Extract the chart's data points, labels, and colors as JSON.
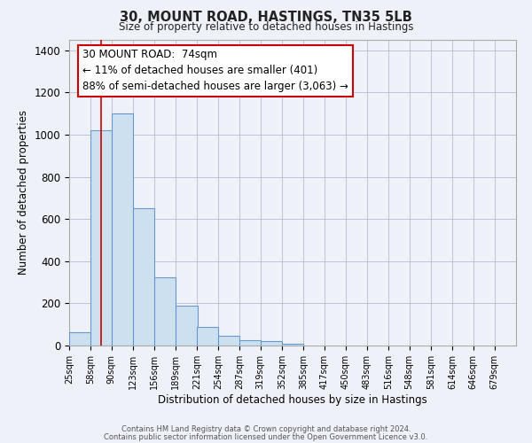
{
  "title": "30, MOUNT ROAD, HASTINGS, TN35 5LB",
  "subtitle": "Size of property relative to detached houses in Hastings",
  "xlabel": "Distribution of detached houses by size in Hastings",
  "ylabel": "Number of detached properties",
  "bar_left_edges": [
    25,
    58,
    90,
    123,
    156,
    189,
    221,
    254,
    287,
    319,
    352,
    385,
    417,
    450,
    483,
    516,
    548,
    581,
    614,
    646
  ],
  "bar_heights": [
    65,
    1020,
    1100,
    650,
    325,
    190,
    90,
    48,
    25,
    20,
    10,
    0,
    0,
    0,
    0,
    0,
    0,
    0,
    0,
    0
  ],
  "bin_width": 33,
  "bar_color": "#cce0f0",
  "bar_edge_color": "#6699cc",
  "bar_edge_width": 0.8,
  "grid_color": "#bbbbcc",
  "background_color": "#eef2f8",
  "red_line_x": 74,
  "annotation_line1": "30 MOUNT ROAD:  74sqm",
  "annotation_line2": "← 11% of detached houses are smaller (401)",
  "annotation_line3": "88% of semi-detached houses are larger (3,063) →",
  "annotation_box_color": "#ffffff",
  "annotation_box_edge_color": "#cc0000",
  "ylim": [
    0,
    1450
  ],
  "xlim": [
    25,
    712
  ],
  "yticks": [
    0,
    200,
    400,
    600,
    800,
    1000,
    1200,
    1400
  ],
  "tick_labels": [
    "25sqm",
    "58sqm",
    "90sqm",
    "123sqm",
    "156sqm",
    "189sqm",
    "221sqm",
    "254sqm",
    "287sqm",
    "319sqm",
    "352sqm",
    "385sqm",
    "417sqm",
    "450sqm",
    "483sqm",
    "516sqm",
    "548sqm",
    "581sqm",
    "614sqm",
    "646sqm",
    "679sqm"
  ],
  "tick_positions": [
    25,
    58,
    90,
    123,
    156,
    189,
    221,
    254,
    287,
    319,
    352,
    385,
    417,
    450,
    483,
    516,
    548,
    581,
    614,
    646,
    679
  ],
  "footer_line1": "Contains HM Land Registry data © Crown copyright and database right 2024.",
  "footer_line2": "Contains public sector information licensed under the Open Government Licence v3.0."
}
